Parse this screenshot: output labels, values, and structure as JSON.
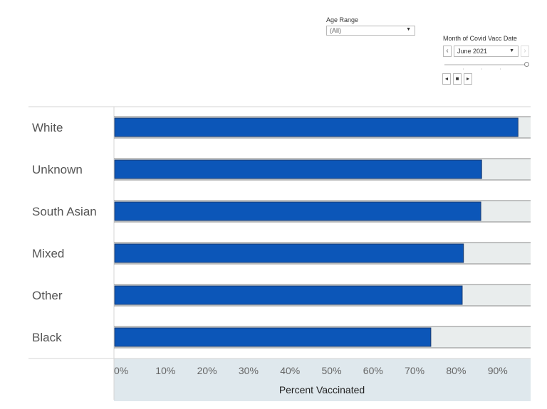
{
  "filters": {
    "age_range": {
      "label": "Age Range",
      "value": "(All)"
    },
    "month": {
      "label": "Month of Covid Vacc Date",
      "value": "June 2021"
    }
  },
  "colors": {
    "bar": "#0c56b8",
    "bar_border": "#1a3a6e",
    "track": "#e9eded",
    "axis_band": "#dfe8ed"
  },
  "chart_data": {
    "type": "bar",
    "orientation": "horizontal",
    "categories": [
      "White",
      "Unknown",
      "South Asian",
      "Mixed",
      "Other",
      "Black"
    ],
    "values": [
      97.8,
      89.0,
      88.8,
      84.6,
      84.3,
      76.7
    ],
    "track_value": 100,
    "xlabel": "Percent Vaccinated",
    "x_ticks": [
      "0%",
      "10%",
      "20%",
      "30%",
      "40%",
      "50%",
      "60%",
      "70%",
      "80%",
      "90%"
    ],
    "xlim": [
      0,
      100
    ],
    "grid": false
  }
}
